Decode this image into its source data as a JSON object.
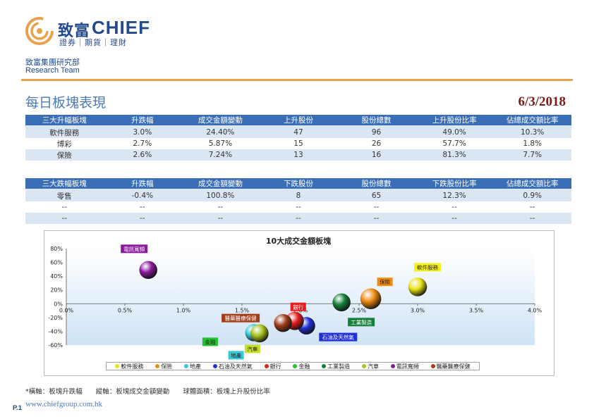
{
  "header": {
    "brand_cn": "致富",
    "brand_en": "CHIEF",
    "brand_sub": "證券｜期貨｜理財",
    "dept_cn": "致富集團研究部",
    "dept_en": "Research Team",
    "title": "每日板塊表現",
    "date": "6/3/2018"
  },
  "colors": {
    "accent": "#e8a24a",
    "brand": "#234a8c",
    "table_header": "#3a6fb7",
    "table_stripe": "#dbe6f3"
  },
  "top_table": {
    "headers": [
      "三大升幅板塊",
      "升跌幅",
      "成交金額變動",
      "上升股份",
      "股份總數",
      "上升股份比率",
      "佔總成交額比率"
    ],
    "rows": [
      [
        "軟件服務",
        "3.0%",
        "24.40%",
        "47",
        "96",
        "49.0%",
        "10.3%"
      ],
      [
        "博彩",
        "2.7%",
        "5.87%",
        "15",
        "26",
        "57.7%",
        "1.8%"
      ],
      [
        "保險",
        "2.6%",
        "7.24%",
        "13",
        "16",
        "81.3%",
        "7.7%"
      ]
    ]
  },
  "bottom_table": {
    "headers": [
      "三大跌幅板塊",
      "升跌幅",
      "成交金額變動",
      "下跌股份",
      "股份總數",
      "下跌股份比率",
      "佔總成交額比率"
    ],
    "rows": [
      [
        "零售",
        "-0.4%",
        "100.8%",
        "8",
        "65",
        "12.3%",
        "0.9%"
      ],
      [
        "--",
        "--",
        "--",
        "--",
        "--",
        "--",
        "--"
      ],
      [
        "--",
        "--",
        "--",
        "--",
        "--",
        "--",
        "--"
      ]
    ]
  },
  "chart_data": {
    "type": "scatter",
    "title": "10大成交金額板塊",
    "xlim": [
      0,
      4.0
    ],
    "ylim": [
      -60,
      80
    ],
    "x_ticks": [
      "0.0%",
      "0.5%",
      "1.0%",
      "1.5%",
      "2.0%",
      "2.5%",
      "3.0%",
      "3.5%",
      "4.0%"
    ],
    "y_ticks": [
      "80%",
      "60%",
      "40%",
      "20%",
      "0%",
      "-20%",
      "-40%",
      "-60%"
    ],
    "grid": false,
    "legend_position": "bottom",
    "series": [
      {
        "name": "軟件服務",
        "x": 3.0,
        "y": 24.4,
        "size": 49.0,
        "color": "#e8e31a"
      },
      {
        "name": "保險",
        "x": 2.6,
        "y": 7.2,
        "size": 81.3,
        "color": "#f08a10"
      },
      {
        "name": "地產",
        "x": 1.6,
        "y": -42,
        "size": 30,
        "color": "#39c7d6"
      },
      {
        "name": "石油及天然氣",
        "x": 2.05,
        "y": -32,
        "size": 35,
        "color": "#2230d8"
      },
      {
        "name": "銀行",
        "x": 1.95,
        "y": -25,
        "size": 45,
        "color": "#e81e1e"
      },
      {
        "name": "金融",
        "x": 1.65,
        "y": -43,
        "size": 40,
        "color": "#22c22e"
      },
      {
        "name": "工業製造",
        "x": 2.35,
        "y": 2,
        "size": 40,
        "color": "#15803a"
      },
      {
        "name": "汽車",
        "x": 1.65,
        "y": -43,
        "size": 40,
        "color": "#a9c421"
      },
      {
        "name": "電訊寬頻",
        "x": 0.7,
        "y": 49,
        "size": 40,
        "color": "#8a1a9c"
      },
      {
        "name": "醫藥醫療保健",
        "x": 1.85,
        "y": -28,
        "size": 40,
        "color": "#a23d1a"
      }
    ],
    "labels": [
      {
        "series": "電訊寬頻",
        "bg": "#8a1a9c",
        "fg": "#ffffff"
      },
      {
        "series": "軟件服務",
        "bg": "#f5f01f",
        "fg": "#222222"
      },
      {
        "series": "保險",
        "bg": "#f08a10",
        "fg": "#222222"
      },
      {
        "series": "銀行",
        "bg": "#e81e1e",
        "fg": "#ffffff"
      },
      {
        "series": "醫藥醫療保健",
        "bg": "#a23d1a",
        "fg": "#ffffff"
      },
      {
        "series": "工業製造",
        "bg": "#15803a",
        "fg": "#ffffff"
      },
      {
        "series": "石油及天然氣",
        "bg": "#2230d8",
        "fg": "#ffffff"
      },
      {
        "series": "金融",
        "bg": "#22c22e",
        "fg": "#222222"
      },
      {
        "series": "汽車",
        "bg": "#c6dd2a",
        "fg": "#222222"
      },
      {
        "series": "地產",
        "bg": "#39c7d6",
        "fg": "#222222"
      }
    ]
  },
  "footer": {
    "note": "*橫軸：板塊升跌幅　　縱軸：板塊成交金額變動　　球體面積：板塊上升股份比率",
    "page": "P.1",
    "website": "www.chiefgroup.com.hk"
  }
}
